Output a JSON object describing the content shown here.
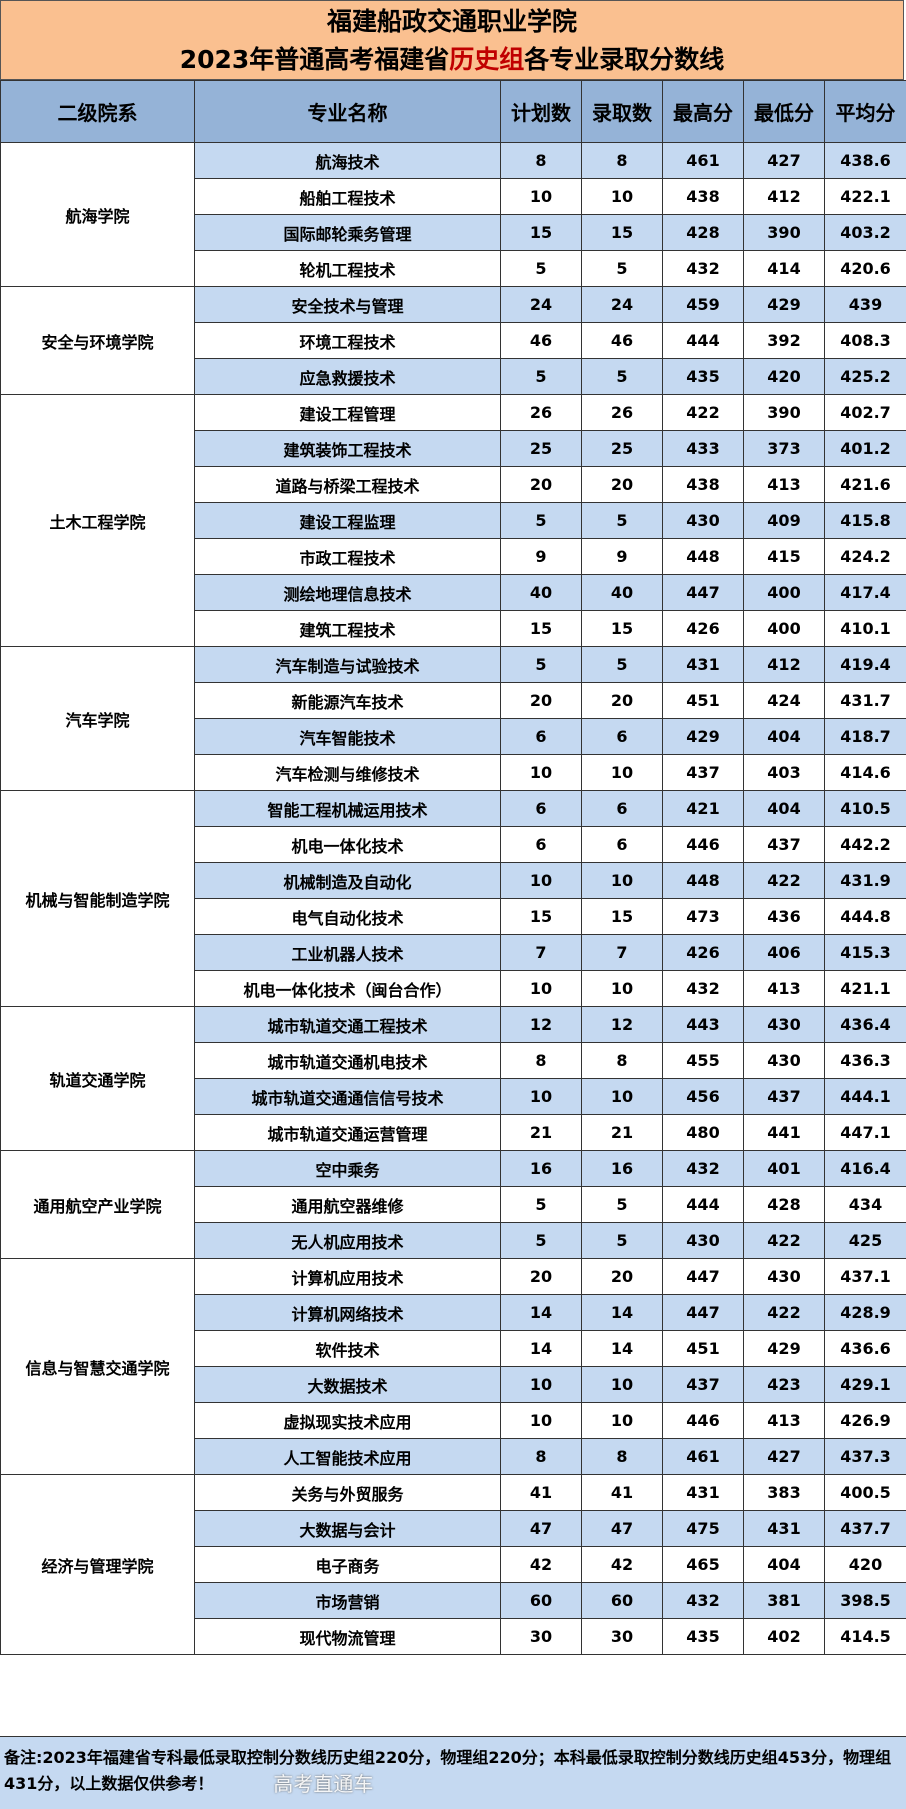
{
  "title": {
    "line1": "福建船政交通职业学院",
    "line2_pre": "2023年普通高考福建省",
    "line2_highlight": "历史组",
    "line2_post": "各专业录取分数线",
    "highlight_color": "#c00000"
  },
  "headers": [
    "二级院系",
    "专业名称",
    "计划数",
    "录取数",
    "最高分",
    "最低分",
    "平均分"
  ],
  "colleges": [
    {
      "name": "航海学院",
      "rows": [
        [
          "航海技术",
          "8",
          "8",
          "461",
          "427",
          "438.6"
        ],
        [
          "船舶工程技术",
          "10",
          "10",
          "438",
          "412",
          "422.1"
        ],
        [
          "国际邮轮乘务管理",
          "15",
          "15",
          "428",
          "390",
          "403.2"
        ],
        [
          "轮机工程技术",
          "5",
          "5",
          "432",
          "414",
          "420.6"
        ]
      ]
    },
    {
      "name": "安全与环境学院",
      "rows": [
        [
          "安全技术与管理",
          "24",
          "24",
          "459",
          "429",
          "439"
        ],
        [
          "环境工程技术",
          "46",
          "46",
          "444",
          "392",
          "408.3"
        ],
        [
          "应急救援技术",
          "5",
          "5",
          "435",
          "420",
          "425.2"
        ]
      ]
    },
    {
      "name": "土木工程学院",
      "rows": [
        [
          "建设工程管理",
          "26",
          "26",
          "422",
          "390",
          "402.7"
        ],
        [
          "建筑装饰工程技术",
          "25",
          "25",
          "433",
          "373",
          "401.2"
        ],
        [
          "道路与桥梁工程技术",
          "20",
          "20",
          "438",
          "413",
          "421.6"
        ],
        [
          "建设工程监理",
          "5",
          "5",
          "430",
          "409",
          "415.8"
        ],
        [
          "市政工程技术",
          "9",
          "9",
          "448",
          "415",
          "424.2"
        ],
        [
          "测绘地理信息技术",
          "40",
          "40",
          "447",
          "400",
          "417.4"
        ],
        [
          "建筑工程技术",
          "15",
          "15",
          "426",
          "400",
          "410.1"
        ]
      ]
    },
    {
      "name": "汽车学院",
      "rows": [
        [
          "汽车制造与试验技术",
          "5",
          "5",
          "431",
          "412",
          "419.4"
        ],
        [
          "新能源汽车技术",
          "20",
          "20",
          "451",
          "424",
          "431.7"
        ],
        [
          "汽车智能技术",
          "6",
          "6",
          "429",
          "404",
          "418.7"
        ],
        [
          "汽车检测与维修技术",
          "10",
          "10",
          "437",
          "403",
          "414.6"
        ]
      ]
    },
    {
      "name": "机械与智能制造学院",
      "rows": [
        [
          "智能工程机械运用技术",
          "6",
          "6",
          "421",
          "404",
          "410.5"
        ],
        [
          "机电一体化技术",
          "6",
          "6",
          "446",
          "437",
          "442.2"
        ],
        [
          "机械制造及自动化",
          "10",
          "10",
          "448",
          "422",
          "431.9"
        ],
        [
          "电气自动化技术",
          "15",
          "15",
          "473",
          "436",
          "444.8"
        ],
        [
          "工业机器人技术",
          "7",
          "7",
          "426",
          "406",
          "415.3"
        ],
        [
          "机电一体化技术（闽台合作）",
          "10",
          "10",
          "432",
          "413",
          "421.1"
        ]
      ]
    },
    {
      "name": "轨道交通学院",
      "rows": [
        [
          "城市轨道交通工程技术",
          "12",
          "12",
          "443",
          "430",
          "436.4"
        ],
        [
          "城市轨道交通机电技术",
          "8",
          "8",
          "455",
          "430",
          "436.3"
        ],
        [
          "城市轨道交通通信信号技术",
          "10",
          "10",
          "456",
          "437",
          "444.1"
        ],
        [
          "城市轨道交通运营管理",
          "21",
          "21",
          "480",
          "441",
          "447.1"
        ]
      ]
    },
    {
      "name": "通用航空产业学院",
      "rows": [
        [
          "空中乘务",
          "16",
          "16",
          "432",
          "401",
          "416.4"
        ],
        [
          "通用航空器维修",
          "5",
          "5",
          "444",
          "428",
          "434"
        ],
        [
          "无人机应用技术",
          "5",
          "5",
          "430",
          "422",
          "425"
        ]
      ]
    },
    {
      "name": "信息与智慧交通学院",
      "rows": [
        [
          "计算机应用技术",
          "20",
          "20",
          "447",
          "430",
          "437.1"
        ],
        [
          "计算机网络技术",
          "14",
          "14",
          "447",
          "422",
          "428.9"
        ],
        [
          "软件技术",
          "14",
          "14",
          "451",
          "429",
          "436.6"
        ],
        [
          "大数据技术",
          "10",
          "10",
          "437",
          "423",
          "429.1"
        ],
        [
          "虚拟现实技术应用",
          "10",
          "10",
          "446",
          "413",
          "426.9"
        ],
        [
          "人工智能技术应用",
          "8",
          "8",
          "461",
          "427",
          "437.3"
        ]
      ]
    },
    {
      "name": "经济与管理学院",
      "rows": [
        [
          "关务与外贸服务",
          "41",
          "41",
          "431",
          "383",
          "400.5"
        ],
        [
          "大数据与会计",
          "47",
          "47",
          "475",
          "431",
          "437.7"
        ],
        [
          "电子商务",
          "42",
          "42",
          "465",
          "404",
          "420"
        ],
        [
          "市场营销",
          "60",
          "60",
          "432",
          "381",
          "398.5"
        ],
        [
          "现代物流管理",
          "30",
          "30",
          "435",
          "402",
          "414.5"
        ]
      ]
    }
  ],
  "footer": "备注:2023年福建省专科最低录取控制分数线历史组220分，物理组220分；本科最低录取控制分数线历史组453分，物理组431分，以上数据仅供参考！",
  "watermark": "高考直通车",
  "colors": {
    "title_bg": "#fac090",
    "header_bg": "#95b3d7",
    "row_alt_bg": "#c5d9f1"
  }
}
